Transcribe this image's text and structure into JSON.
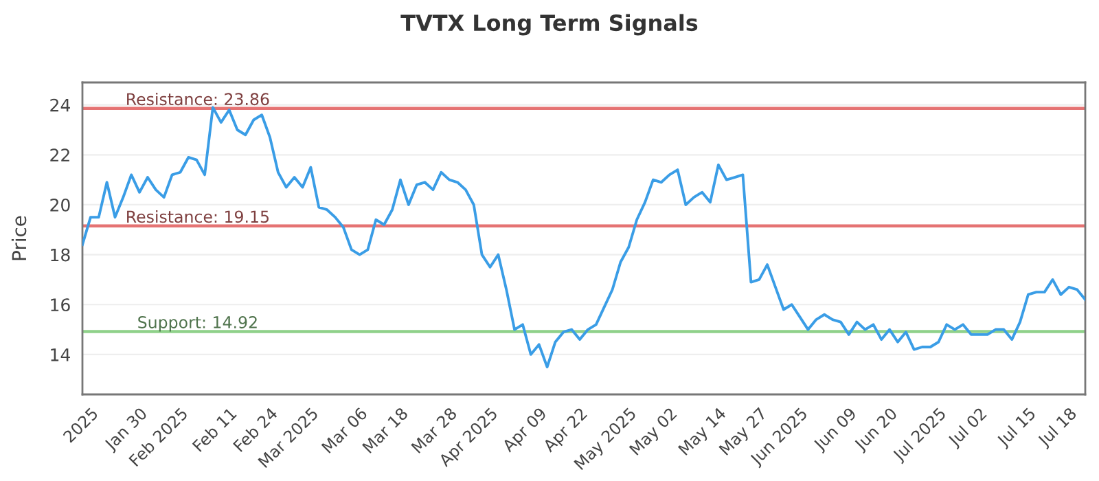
{
  "chart_data": {
    "type": "line",
    "title": "TVTX Long Term Signals",
    "ylabel": "Price",
    "categories": [
      null,
      "2025",
      null,
      null,
      null,
      null,
      null,
      "Jan 30",
      null,
      null,
      null,
      null,
      "Feb 2025",
      null,
      null,
      null,
      null,
      null,
      "Feb 11",
      null,
      null,
      null,
      null,
      "Feb 24",
      null,
      null,
      null,
      null,
      "Mar 2025",
      null,
      null,
      null,
      null,
      null,
      "Mar 06",
      null,
      null,
      null,
      null,
      "Mar 18",
      null,
      null,
      null,
      null,
      null,
      "Mar 28",
      null,
      null,
      null,
      null,
      "Apr 2025",
      null,
      null,
      null,
      null,
      null,
      "Apr 09",
      null,
      null,
      null,
      null,
      "Apr 22",
      null,
      null,
      null,
      null,
      null,
      "May 2025",
      null,
      null,
      null,
      null,
      "May 02",
      null,
      null,
      null,
      null,
      null,
      "May 14",
      null,
      null,
      null,
      null,
      "May 27",
      null,
      null,
      null,
      null,
      "Jun 2025",
      null,
      null,
      null,
      null,
      null,
      "Jun 09",
      null,
      null,
      null,
      null,
      "Jun 20",
      null,
      null,
      null,
      null,
      null,
      "Jul 2025",
      null,
      null,
      null,
      null,
      "Jul 02",
      null,
      null,
      null,
      null,
      null,
      "Jul 15",
      null,
      null,
      null,
      null,
      "Jul 18",
      null,
      null
    ],
    "series": [
      {
        "color": "#3a9de6",
        "values": [
          18.4,
          19.5,
          19.5,
          20.9,
          19.5,
          20.3,
          21.2,
          20.5,
          21.1,
          20.6,
          20.3,
          21.2,
          21.3,
          21.9,
          21.8,
          21.2,
          23.9,
          23.3,
          23.8,
          23.0,
          22.8,
          23.4,
          23.6,
          22.7,
          21.3,
          20.7,
          21.1,
          20.7,
          21.5,
          19.9,
          19.8,
          19.5,
          19.1,
          18.2,
          18.0,
          18.2,
          19.4,
          19.2,
          19.8,
          21.0,
          20.0,
          20.8,
          20.9,
          20.6,
          21.3,
          21.0,
          20.9,
          20.6,
          20.0,
          18.0,
          17.5,
          18.0,
          16.6,
          15.0,
          15.2,
          14.0,
          14.4,
          13.5,
          14.5,
          14.9,
          15.0,
          14.6,
          15.0,
          15.2,
          15.9,
          16.6,
          17.7,
          18.3,
          19.4,
          20.1,
          21.0,
          20.9,
          21.2,
          21.4,
          20.0,
          20.3,
          20.5,
          20.1,
          21.6,
          21.0,
          21.1,
          21.2,
          16.9,
          17.0,
          17.6,
          16.7,
          15.8,
          16.0,
          15.5,
          15.0,
          15.4,
          15.6,
          15.4,
          15.3,
          14.8,
          15.3,
          15.0,
          15.2,
          14.6,
          15.0,
          14.5,
          14.9,
          14.2,
          14.3,
          14.3,
          14.5,
          15.2,
          15.0,
          15.2,
          14.8,
          14.8,
          14.8,
          15.0,
          15.0,
          14.6,
          15.3,
          16.4,
          16.5,
          16.5,
          17.0,
          16.4,
          16.7,
          16.6,
          16.2
        ]
      }
    ],
    "ylim": [
      12.4,
      24.9
    ],
    "yticks": [
      14,
      16,
      18,
      20,
      22,
      24
    ],
    "grid": "y",
    "ref_lines": [
      {
        "axis": "y",
        "value": 23.86,
        "label": "Resistance: 23.86",
        "color": "#e57373"
      },
      {
        "axis": "y",
        "value": 19.15,
        "label": "Resistance: 19.15",
        "color": "#e57373"
      },
      {
        "axis": "y",
        "value": 14.92,
        "label": "Support: 14.92",
        "color": "#8fd18a"
      }
    ]
  }
}
